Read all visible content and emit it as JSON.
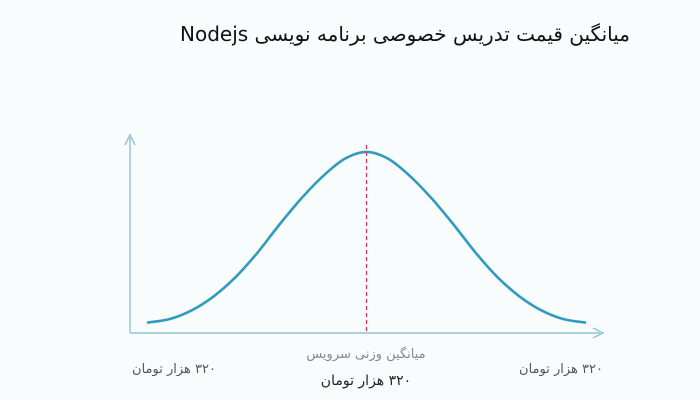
{
  "title": "میانگین قیمت تدریس خصوصی برنامه نویسی Nodejs",
  "chart_data": {
    "type": "line",
    "title": "میانگین قیمت تدریس خصوصی برنامه نویسی Nodejs",
    "xlabel": "",
    "ylabel": "",
    "grid": false,
    "x": [
      0,
      1,
      2,
      3,
      4,
      5,
      6,
      7,
      8,
      9,
      10,
      11,
      12,
      13,
      14,
      15,
      16,
      17,
      18,
      19,
      20
    ],
    "values": [
      0.02,
      0.04,
      0.09,
      0.17,
      0.28,
      0.42,
      0.58,
      0.73,
      0.86,
      0.96,
      1.0,
      0.96,
      0.86,
      0.73,
      0.58,
      0.42,
      0.28,
      0.17,
      0.09,
      0.04,
      0.02
    ],
    "xlim": [
      0,
      20
    ],
    "ylim": [
      0,
      1.08
    ],
    "mean_x": 10,
    "annotations": {
      "left": "۳۲۰ هزار تومان",
      "right": "۳۲۰ هزار تومان",
      "center_caption": "میانگین وزنی سرویس",
      "center_value": "۳۲۰ هزار تومان"
    },
    "colors": {
      "curve": "#2f9bbd",
      "mean_line": "#e0245e",
      "axis": "#8fc3d3",
      "caption": "#888888",
      "label": "#555555",
      "value": "#222222"
    }
  }
}
